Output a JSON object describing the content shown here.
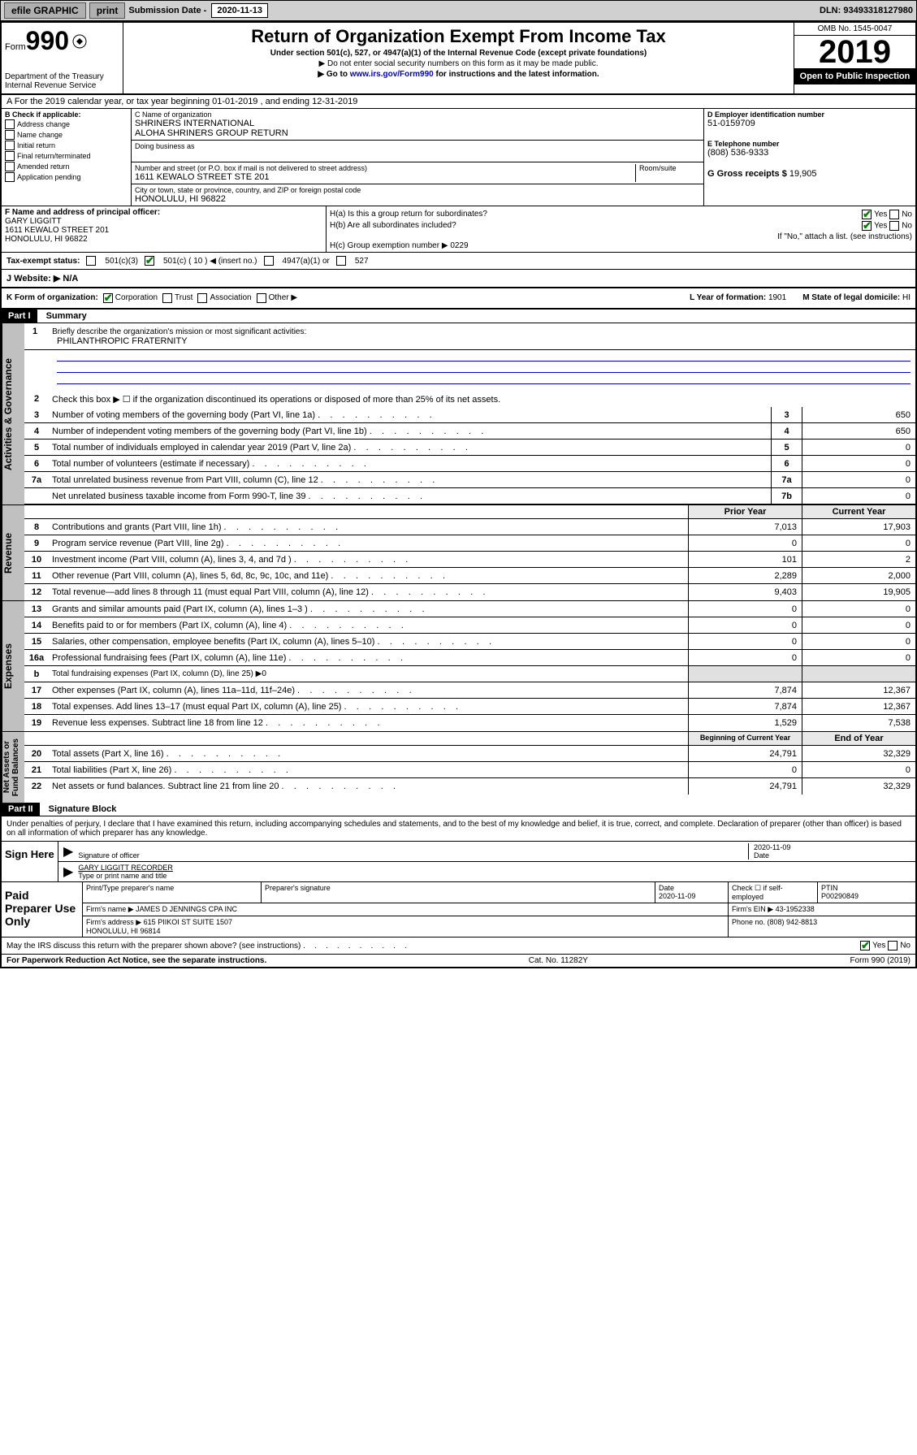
{
  "topbar": {
    "efile": "efile GRAPHIC",
    "print": "print",
    "sub_label": "Submission Date - ",
    "sub_date": "2020-11-13",
    "dln": "DLN: 93493318127980"
  },
  "header": {
    "form_label": "Form",
    "form_no": "990",
    "dept": "Department of the Treasury\nInternal Revenue Service",
    "title": "Return of Organization Exempt From Income Tax",
    "subtitle": "Under section 501(c), 527, or 4947(a)(1) of the Internal Revenue Code (except private foundations)",
    "note1": "▶ Do not enter social security numbers on this form as it may be made public.",
    "note2": "▶ Go to www.irs.gov/Form990 for instructions and the latest information.",
    "link": "www.irs.gov/Form990",
    "omb": "OMB No. 1545-0047",
    "year": "2019",
    "inspect": "Open to Public Inspection"
  },
  "period": "A For the 2019 calendar year, or tax year beginning 01-01-2019    , and ending 12-31-2019",
  "section_b": {
    "label": "B Check if applicable:",
    "items": [
      "Address change",
      "Name change",
      "Initial return",
      "Final return/terminated",
      "Amended return",
      "Application pending"
    ]
  },
  "section_c": {
    "name_label": "C Name of organization",
    "name": "SHRINERS INTERNATIONAL\nALOHA SHRINERS GROUP RETURN",
    "dba_label": "Doing business as",
    "addr_label": "Number and street (or P.O. box if mail is not delivered to street address)",
    "room_label": "Room/suite",
    "addr": "1611 KEWALO STREET STE 201",
    "city_label": "City or town, state or province, country, and ZIP or foreign postal code",
    "city": "HONOLULU, HI  96822"
  },
  "section_d": {
    "label": "D Employer identification number",
    "value": "51-0159709"
  },
  "section_e": {
    "label": "E Telephone number",
    "value": "(808) 536-9333"
  },
  "section_g": {
    "label": "G Gross receipts $ ",
    "value": "19,905"
  },
  "section_f": {
    "label": "F  Name and address of principal officer:",
    "value": "GARY LIGGITT\n1611 KEWALO STREET 201\nHONOLULU, HI  96822"
  },
  "section_h": {
    "a": "H(a)  Is this a group return for subordinates?",
    "b": "H(b)  Are all subordinates included?",
    "b_note": "If \"No,\" attach a list. (see instructions)",
    "c": "H(c)  Group exemption number ▶",
    "c_val": "0229",
    "yes": "Yes",
    "no": "No"
  },
  "tax_status": {
    "label": "Tax-exempt status:",
    "o1": "501(c)(3)",
    "o2": "501(c) ( 10 ) ◀ (insert no.)",
    "o3": "4947(a)(1) or",
    "o4": "527"
  },
  "website": {
    "label": "J   Website: ▶",
    "value": "N/A"
  },
  "section_k": {
    "label": "K Form of organization:",
    "o1": "Corporation",
    "o2": "Trust",
    "o3": "Association",
    "o4": "Other ▶",
    "l": "L Year of formation: ",
    "l_val": "1901",
    "m": "M State of legal domicile: ",
    "m_val": "HI"
  },
  "part1": {
    "hdr": "Part I",
    "title": "Summary",
    "side_gov": "Activities & Governance",
    "side_rev": "Revenue",
    "side_exp": "Expenses",
    "side_net": "Net Assets or\nFund Balances",
    "l1": "Briefly describe the organization's mission or most significant activities:",
    "l1_val": "PHILANTHROPIC FRATERNITY",
    "l2": "Check this box ▶ ☐  if the organization discontinued its operations or disposed of more than 25% of its net assets.",
    "lines_single": [
      {
        "n": "3",
        "d": "Number of voting members of the governing body (Part VI, line 1a)",
        "b": "3",
        "v": "650"
      },
      {
        "n": "4",
        "d": "Number of independent voting members of the governing body (Part VI, line 1b)",
        "b": "4",
        "v": "650"
      },
      {
        "n": "5",
        "d": "Total number of individuals employed in calendar year 2019 (Part V, line 2a)",
        "b": "5",
        "v": "0"
      },
      {
        "n": "6",
        "d": "Total number of volunteers (estimate if necessary)",
        "b": "6",
        "v": "0"
      },
      {
        "n": "7a",
        "d": "Total unrelated business revenue from Part VIII, column (C), line 12",
        "b": "7a",
        "v": "0"
      },
      {
        "n": "",
        "d": "Net unrelated business taxable income from Form 990-T, line 39",
        "b": "7b",
        "v": "0"
      }
    ],
    "hdr_prior": "Prior Year",
    "hdr_current": "Current Year",
    "rev_lines": [
      {
        "n": "8",
        "d": "Contributions and grants (Part VIII, line 1h)",
        "p": "7,013",
        "c": "17,903"
      },
      {
        "n": "9",
        "d": "Program service revenue (Part VIII, line 2g)",
        "p": "0",
        "c": "0"
      },
      {
        "n": "10",
        "d": "Investment income (Part VIII, column (A), lines 3, 4, and 7d )",
        "p": "101",
        "c": "2"
      },
      {
        "n": "11",
        "d": "Other revenue (Part VIII, column (A), lines 5, 6d, 8c, 9c, 10c, and 11e)",
        "p": "2,289",
        "c": "2,000"
      },
      {
        "n": "12",
        "d": "Total revenue—add lines 8 through 11 (must equal Part VIII, column (A), line 12)",
        "p": "9,403",
        "c": "19,905"
      }
    ],
    "exp_lines": [
      {
        "n": "13",
        "d": "Grants and similar amounts paid (Part IX, column (A), lines 1–3 )",
        "p": "0",
        "c": "0"
      },
      {
        "n": "14",
        "d": "Benefits paid to or for members (Part IX, column (A), line 4)",
        "p": "0",
        "c": "0"
      },
      {
        "n": "15",
        "d": "Salaries, other compensation, employee benefits (Part IX, column (A), lines 5–10)",
        "p": "0",
        "c": "0"
      },
      {
        "n": "16a",
        "d": "Professional fundraising fees (Part IX, column (A), line 11e)",
        "p": "0",
        "c": "0"
      }
    ],
    "l16b": "Total fundraising expenses (Part IX, column (D), line 25) ▶0",
    "exp_lines2": [
      {
        "n": "17",
        "d": "Other expenses (Part IX, column (A), lines 11a–11d, 11f–24e)",
        "p": "7,874",
        "c": "12,367"
      },
      {
        "n": "18",
        "d": "Total expenses. Add lines 13–17 (must equal Part IX, column (A), line 25)",
        "p": "7,874",
        "c": "12,367"
      },
      {
        "n": "19",
        "d": "Revenue less expenses. Subtract line 18 from line 12",
        "p": "1,529",
        "c": "7,538"
      }
    ],
    "hdr_beg": "Beginning of Current Year",
    "hdr_end": "End of Year",
    "net_lines": [
      {
        "n": "20",
        "d": "Total assets (Part X, line 16)",
        "p": "24,791",
        "c": "32,329"
      },
      {
        "n": "21",
        "d": "Total liabilities (Part X, line 26)",
        "p": "0",
        "c": "0"
      },
      {
        "n": "22",
        "d": "Net assets or fund balances. Subtract line 21 from line 20",
        "p": "24,791",
        "c": "32,329"
      }
    ]
  },
  "part2": {
    "hdr": "Part II",
    "title": "Signature Block",
    "text": "Under penalties of perjury, I declare that I have examined this return, including accompanying schedules and statements, and to the best of my knowledge and belief, it is true, correct, and complete. Declaration of preparer (other than officer) is based on all information of which preparer has any knowledge.",
    "sign_here": "Sign Here",
    "sig_officer": "Signature of officer",
    "sig_date": "2020-11-09",
    "date_label": "Date",
    "name_title": "GARY LIGGITT  RECORDER",
    "name_label": "Type or print name and title",
    "paid": "Paid Preparer Use Only",
    "prep_name_label": "Print/Type preparer's name",
    "prep_sig_label": "Preparer's signature",
    "prep_date": "2020-11-09",
    "check_label": "Check ☐ if self-employed",
    "ptin_label": "PTIN",
    "ptin": "P00290849",
    "firm_name_label": "Firm's name    ▶",
    "firm_name": "JAMES D JENNINGS CPA INC",
    "firm_ein_label": "Firm's EIN ▶",
    "firm_ein": "43-1952338",
    "firm_addr_label": "Firm's address ▶",
    "firm_addr": "615 PIIKOI ST SUITE 1507\nHONOLULU, HI  96814",
    "phone_label": "Phone no. ",
    "phone": "(808) 942-8813",
    "discuss": "May the IRS discuss this return with the preparer shown above? (see instructions)",
    "yes": "Yes",
    "no": "No"
  },
  "footer": {
    "paperwork": "For Paperwork Reduction Act Notice, see the separate instructions.",
    "cat": "Cat. No. 11282Y",
    "form": "Form 990 (2019)"
  },
  "colors": {
    "header_bg": "#d0d0d0",
    "part_bg": "#000000",
    "link": "#0000cc",
    "check": "#008000"
  }
}
